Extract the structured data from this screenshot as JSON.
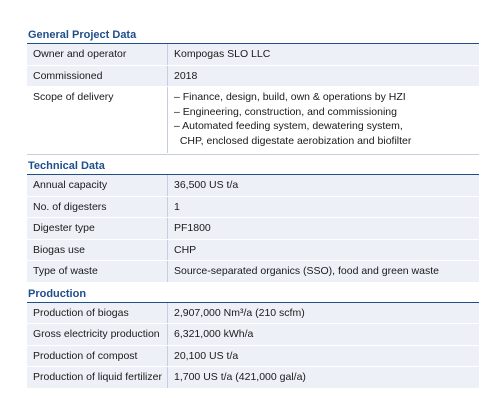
{
  "sections": [
    {
      "title": "General Project Data",
      "rows": [
        {
          "label": "Owner and operator",
          "values": [
            "Kompogas SLO LLC"
          ]
        },
        {
          "label": "Commissioned",
          "values": [
            "2018"
          ]
        },
        {
          "label": "Scope of delivery",
          "values": [
            "– Finance, design, build, own & operations by HZI",
            "– Engineering, construction, and commissioning",
            "– Automated feeding system, dewatering system,",
            "  CHP, enclosed digestate aerobization and biofilter"
          ]
        }
      ]
    },
    {
      "title": "Technical Data",
      "rows": [
        {
          "label": "Annual capacity",
          "values": [
            "36,500 US t/a"
          ]
        },
        {
          "label": "No. of digesters",
          "values": [
            "1"
          ]
        },
        {
          "label": "Digester type",
          "values": [
            "PF1800"
          ]
        },
        {
          "label": "Biogas use",
          "values": [
            "CHP"
          ]
        },
        {
          "label": "Type of waste",
          "values": [
            "Source-separated organics (SSO), food and green waste"
          ]
        }
      ]
    },
    {
      "title": "Production",
      "rows": [
        {
          "label": "Production of biogas",
          "values": [
            "2,907,000 Nm³/a (210 scfm)"
          ]
        },
        {
          "label": "Gross electricity production",
          "values": [
            "6,321,000 kWh/a"
          ]
        },
        {
          "label": "Production of compost",
          "values": [
            "20,100 US t/a"
          ]
        },
        {
          "label": "Production of liquid fertilizer",
          "values": [
            "1,700 US t/a (421,000 gal/a)"
          ]
        }
      ]
    }
  ]
}
